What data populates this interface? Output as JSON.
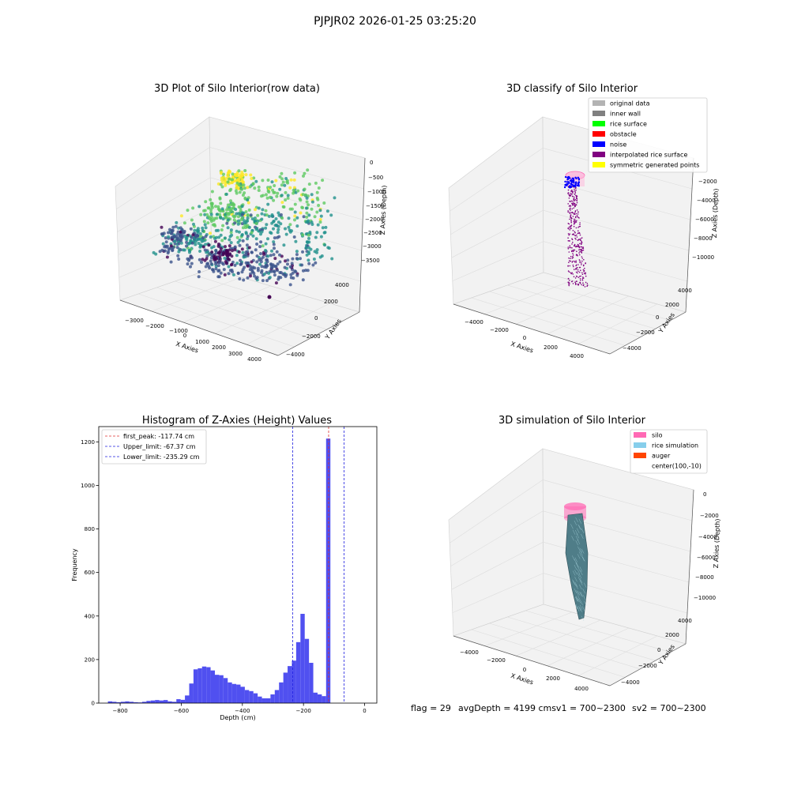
{
  "suptitle": "PJPJR02 2026-01-25 03:25:20",
  "footer": {
    "flag": "flag = 29",
    "avg_depth": "avgDepth = 4199 cmsv1 = 700~2300",
    "sv2": "sv2 = 700~2300"
  },
  "colors": {
    "histogram_bar": "#5050f0",
    "first_peak_line": "#e03030",
    "limit_lines": "#2020e0",
    "pane": "#f2f2f2",
    "grid": "#dddddd"
  },
  "chart_data": [
    {
      "type": "scatter",
      "subtype": "3d",
      "title": "3D Plot of Silo Interior(row data)",
      "xlabel": "X Axies",
      "ylabel": "Y Axies",
      "zlabel": "Z Axies (Depth)",
      "x_ticks": [
        "−3000",
        "−2000",
        "−1000",
        "0",
        "1000",
        "2000",
        "3000",
        "4000"
      ],
      "y_ticks": [
        "−4000",
        "−2000",
        "0",
        "2000",
        "4000"
      ],
      "z_ticks": [
        "0",
        "−500",
        "−1000",
        "−1500",
        "−2000",
        "−2500",
        "−3000",
        "−3500"
      ],
      "colormap": "viridis",
      "colors": [
        "#440154",
        "#3b528b",
        "#21918c",
        "#5ec962",
        "#fde725"
      ],
      "grid": true
    },
    {
      "type": "scatter",
      "subtype": "3d",
      "title": "3D classify of Silo Interior",
      "xlabel": "X Axies",
      "ylabel": "Y Axies",
      "zlabel": "Z Axies (Depth)",
      "x_ticks": [
        "−4000",
        "−2000",
        "0",
        "2000",
        "4000"
      ],
      "y_ticks": [
        "−4000",
        "−2000",
        "0",
        "2000",
        "4000"
      ],
      "z_ticks": [
        "−2000",
        "−4000",
        "−6000",
        "−8000",
        "−10000"
      ],
      "legend_position": "upper-right",
      "legend": [
        {
          "label": "original data",
          "color": "#b3b3b3"
        },
        {
          "label": "inner wall",
          "color": "#808080"
        },
        {
          "label": "rice surface",
          "color": "#00ff00"
        },
        {
          "label": "obstacle",
          "color": "#ff0000"
        },
        {
          "label": "noise",
          "color": "#0000ff"
        },
        {
          "label": "interpolated rice surface",
          "color": "#800080"
        },
        {
          "label": "symmetric generated points",
          "color": "#ffff00"
        }
      ],
      "grid": true
    },
    {
      "type": "bar",
      "subtype": "histogram",
      "title": "Histogram of Z-Axies (Height) Values",
      "xlabel": "Depth (cm)",
      "ylabel": "Frequency",
      "xlim": [
        -870,
        40
      ],
      "ylim": [
        0,
        1270
      ],
      "x_ticks": [
        -800,
        -600,
        -400,
        -200,
        0
      ],
      "x_tick_labels": [
        "−800",
        "−600",
        "−400",
        "−200",
        "0"
      ],
      "y_ticks": [
        0,
        200,
        400,
        600,
        800,
        1000,
        1200
      ],
      "bin_width": 14,
      "bin_starts": [
        -840,
        -826,
        -812,
        -798,
        -784,
        -770,
        -756,
        -742,
        -728,
        -714,
        -700,
        -686,
        -672,
        -658,
        -644,
        -630,
        -616,
        -602,
        -588,
        -574,
        -560,
        -546,
        -532,
        -518,
        -504,
        -490,
        -476,
        -462,
        -448,
        -434,
        -420,
        -406,
        -392,
        -378,
        -364,
        -350,
        -336,
        -322,
        -308,
        -294,
        -280,
        -266,
        -252,
        -238,
        -224,
        -210,
        -196,
        -182,
        -168,
        -154,
        -140,
        -126,
        -112,
        -98,
        -84,
        -70,
        -56,
        -42,
        -28,
        -14
      ],
      "values": [
        8,
        6,
        4,
        6,
        8,
        6,
        4,
        3,
        6,
        10,
        12,
        14,
        12,
        14,
        8,
        6,
        18,
        15,
        35,
        90,
        155,
        160,
        168,
        165,
        150,
        130,
        128,
        115,
        95,
        88,
        85,
        75,
        60,
        55,
        45,
        30,
        22,
        22,
        40,
        60,
        95,
        140,
        170,
        195,
        280,
        410,
        295,
        185,
        48,
        40,
        32,
        1215,
        0,
        0,
        0,
        0,
        0,
        0,
        0,
        0
      ],
      "vlines": [
        {
          "label": "first_peak: -117.74 cm",
          "x": -117.74,
          "color": "#e03030"
        },
        {
          "label": "Upper_limit: -67.37 cm",
          "x": -67.37,
          "color": "#2020e0"
        },
        {
          "label": "Lower_limit: -235.29 cm",
          "x": -235.29,
          "color": "#2020e0"
        }
      ],
      "legend_position": "upper-left",
      "grid": false
    },
    {
      "type": "scatter",
      "subtype": "3d-surface",
      "title": "3D simulation of Silo Interior",
      "xlabel": "X Axies",
      "ylabel": "Y Axies",
      "zlabel": "Z Axies (Depth)",
      "x_ticks": [
        "−4000",
        "−2000",
        "0",
        "2000",
        "4000"
      ],
      "y_ticks": [
        "−4000",
        "−2000",
        "0",
        "2000",
        "4000"
      ],
      "z_ticks": [
        "0",
        "−2000",
        "−4000",
        "−6000",
        "−8000",
        "−10000"
      ],
      "legend_position": "upper-right",
      "legend": [
        {
          "label": "silo",
          "color": "#ff69b4"
        },
        {
          "label": "rice simulation",
          "color": "#87ceeb"
        },
        {
          "label": "auger",
          "color": "#ff4500"
        },
        {
          "label": "center(100,-10)",
          "color": ""
        }
      ],
      "grid": true
    }
  ]
}
